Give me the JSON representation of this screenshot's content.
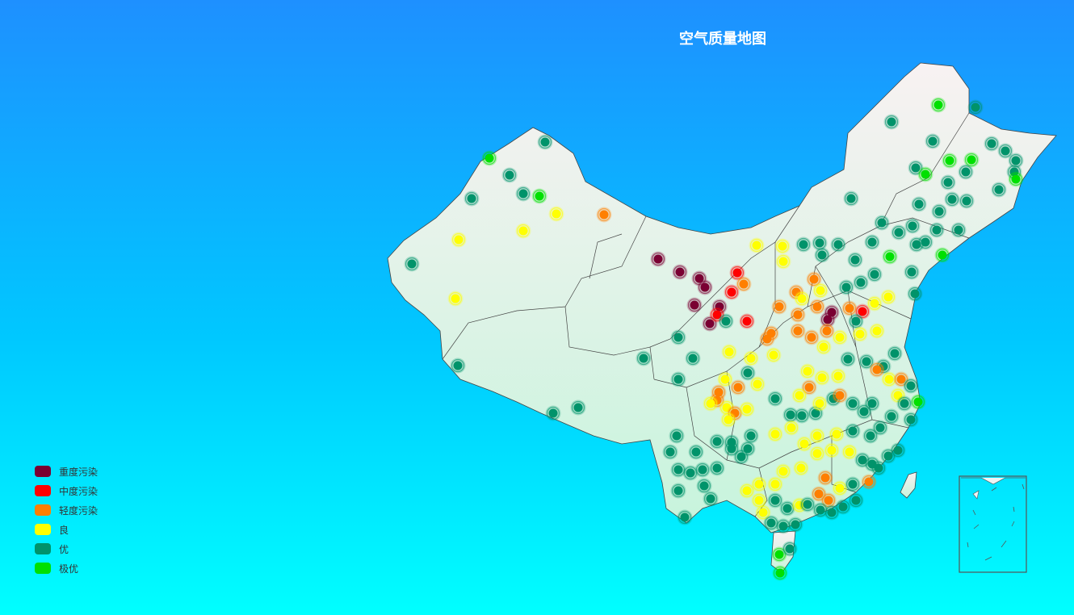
{
  "title": "空气质量地图",
  "legend": [
    {
      "label": "重度污染",
      "color": "#7a0032"
    },
    {
      "label": "中度污染",
      "color": "#ff0000"
    },
    {
      "label": "轻度污染",
      "color": "#ff7f00"
    },
    {
      "label": "良",
      "color": "#ffff00"
    },
    {
      "label": "优",
      "color": "#00936a"
    },
    {
      "label": "极优",
      "color": "#00e000"
    }
  ]
}
